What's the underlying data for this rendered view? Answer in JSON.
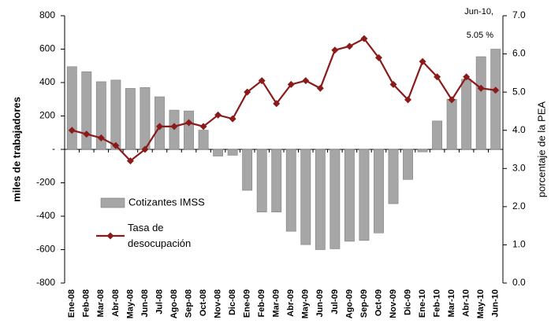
{
  "chart_data": {
    "type": "bar",
    "y_label": "miles de trabajadores",
    "y2_label": "porcentaje de la PEA",
    "annotations": [
      "Jun-10,",
      "5.05 %"
    ],
    "categories": [
      "Ene-08",
      "Feb-08",
      "Mar-08",
      "Abr-08",
      "May-08",
      "Jun-08",
      "Jul-08",
      "Ago-08",
      "Sep-08",
      "Oct-08",
      "Nov-08",
      "Dic-08",
      "Ene-09",
      "Feb-09",
      "Mar-09",
      "Abr-09",
      "May-09",
      "Jun-09",
      "Jul-09",
      "Ago-09",
      "Sep-09",
      "Oct-09",
      "Nov-09",
      "Dic-09",
      "Ene-10",
      "Feb-10",
      "Mar-10",
      "Abr-10",
      "May-10",
      "Jun-10"
    ],
    "series": [
      {
        "name": "Cotizantes IMSS",
        "type": "bar",
        "color": "#a6a6a6",
        "values": [
          495,
          465,
          405,
          415,
          365,
          370,
          315,
          235,
          230,
          115,
          -40,
          -35,
          -245,
          -375,
          -375,
          -490,
          -570,
          -600,
          -595,
          -550,
          -545,
          -500,
          -325,
          -180,
          -15,
          170,
          300,
          420,
          555,
          600
        ]
      },
      {
        "name": "Tasa de desocupación",
        "type": "line",
        "axis": "y2",
        "color": "#8b1a1a",
        "values": [
          4.0,
          3.9,
          3.8,
          3.6,
          3.2,
          3.5,
          4.1,
          4.1,
          4.2,
          4.1,
          4.4,
          4.3,
          5.0,
          5.3,
          4.7,
          5.2,
          5.3,
          5.1,
          6.1,
          6.2,
          6.4,
          5.9,
          5.2,
          4.8,
          5.8,
          5.4,
          4.8,
          5.4,
          5.1,
          5.05
        ]
      }
    ],
    "ylim": [
      -800,
      800
    ],
    "yticks": [
      -800,
      -600,
      -400,
      -200,
      {
        "value": 0,
        "label": "-"
      },
      200,
      400,
      600,
      800
    ],
    "y2lim": [
      0,
      7
    ],
    "y2ticks": [
      {
        "value": 0,
        "label": "0.0"
      },
      {
        "value": 1,
        "label": "1.0"
      },
      {
        "value": 2,
        "label": "2.0"
      },
      {
        "value": 3,
        "label": "3.0"
      },
      {
        "value": 4,
        "label": "4.0"
      },
      {
        "value": 5,
        "label": "5.0"
      },
      {
        "value": 6,
        "label": "6.0"
      },
      {
        "value": 7,
        "label": "7.0"
      }
    ]
  }
}
